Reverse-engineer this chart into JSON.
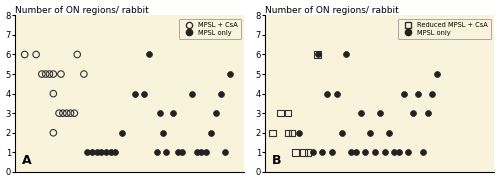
{
  "title": "Number of ON regions/ rabbit",
  "background_color": "#FAF3DC",
  "ylim": [
    0,
    8
  ],
  "yticks": [
    0,
    1,
    2,
    3,
    4,
    5,
    6,
    7,
    8
  ],
  "panel_A": {
    "label": "A",
    "legend_open_label": "MPSL + CsA",
    "legend_filled_label": "MPSL only",
    "open_circles_x": [
      1.0,
      2.2,
      4.0,
      4.8,
      2.8,
      3.2,
      3.6,
      4.0,
      6.5,
      7.2,
      4.6,
      5.0,
      5.4,
      5.8,
      6.2,
      4.0
    ],
    "open_circles_y": [
      6,
      6,
      5,
      5,
      5,
      5,
      5,
      4,
      6,
      5,
      3,
      3,
      3,
      3,
      3,
      2
    ],
    "filled_circles_x": [
      7.5,
      8.0,
      8.6,
      9.0,
      9.5,
      10.0,
      10.5,
      11.2,
      12.5,
      13.5,
      14.0,
      14.8,
      15.2,
      15.5,
      15.8,
      16.5,
      17.0,
      17.5,
      18.5,
      19.0,
      19.5,
      20.0,
      20.5,
      21.0,
      21.5,
      22.0,
      22.5
    ],
    "filled_circles_y": [
      1,
      1,
      1,
      1,
      1,
      1,
      1,
      2,
      4,
      4,
      6,
      1,
      3,
      2,
      1,
      3,
      1,
      1,
      4,
      1,
      1,
      1,
      2,
      3,
      4,
      1,
      5
    ]
  },
  "panel_B": {
    "label": "B",
    "legend_open_label": "Reduced MPSL + CsA",
    "legend_filled_label": "MPSL only",
    "open_squares_x": [
      0.8,
      1.6,
      2.4,
      2.8,
      2.4,
      3.2,
      5.5,
      4.0,
      4.5
    ],
    "open_squares_y": [
      2,
      3,
      3,
      2,
      2,
      1,
      6,
      1,
      1
    ],
    "filled_circles_x": [
      3.5,
      5.0,
      5.5,
      6.0,
      6.5,
      7.0,
      7.5,
      8.0,
      8.5,
      9.0,
      9.5,
      10.0,
      10.5,
      11.0,
      11.5,
      12.0,
      12.5,
      13.0,
      13.5,
      14.0,
      14.5,
      15.0,
      15.5,
      16.0,
      16.5,
      17.0,
      17.5,
      18.0
    ],
    "filled_circles_y": [
      2,
      1,
      6,
      1,
      4,
      1,
      4,
      2,
      6,
      1,
      1,
      3,
      1,
      2,
      1,
      3,
      1,
      2,
      1,
      1,
      4,
      1,
      3,
      4,
      1,
      3,
      4,
      5
    ]
  }
}
